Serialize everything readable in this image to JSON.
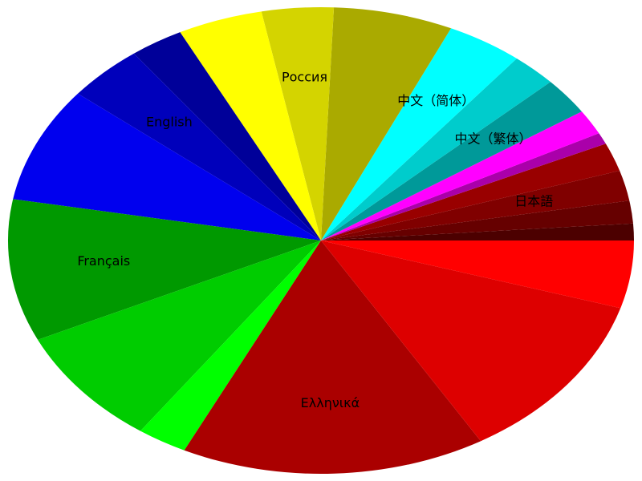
{
  "chart_data": {
    "type": "pie",
    "title": "",
    "slices": [
      {
        "label": "",
        "value": 0.0128,
        "color": "#4c0000"
      },
      {
        "label": "",
        "value": 0.0173,
        "color": "#660000"
      },
      {
        "label": "日本語",
        "value": 0.0231,
        "color": "#800000"
      },
      {
        "label": "",
        "value": 0.0217,
        "color": "#990000"
      },
      {
        "label": "",
        "value": 0.0087,
        "color": "#aa00aa"
      },
      {
        "label": "",
        "value": 0.019,
        "color": "#ff00ff"
      },
      {
        "label": "中文（繁体）",
        "value": 0.0283,
        "color": "#009999"
      },
      {
        "label": "",
        "value": 0.0258,
        "color": "#00cccc"
      },
      {
        "label": "中文（简体）",
        "value": 0.0433,
        "color": "#00ffff"
      },
      {
        "label": "",
        "value": 0.0678,
        "color": "#aaaa00"
      },
      {
        "label": "Россия",
        "value": 0.0408,
        "color": "#d4d400"
      },
      {
        "label": "",
        "value": 0.0482,
        "color": "#ffff00"
      },
      {
        "label": "",
        "value": 0.0304,
        "color": "#000099"
      },
      {
        "label": "English",
        "value": 0.0436,
        "color": "#0000bb"
      },
      {
        "label": "",
        "value": 0.088,
        "color": "#0000ee"
      },
      {
        "label": "Français",
        "value": 0.1082,
        "color": "#009900"
      },
      {
        "label": "",
        "value": 0.0904,
        "color": "#00cc00"
      },
      {
        "label": "",
        "value": 0.0285,
        "color": "#00ff00"
      },
      {
        "label": "Ελληνικά",
        "value": 0.173,
        "color": "#aa0000"
      },
      {
        "label": "",
        "value": 0.1297,
        "color": "#dd0000"
      },
      {
        "label": "",
        "value": 0.0515,
        "color": "#ff0000"
      }
    ]
  }
}
